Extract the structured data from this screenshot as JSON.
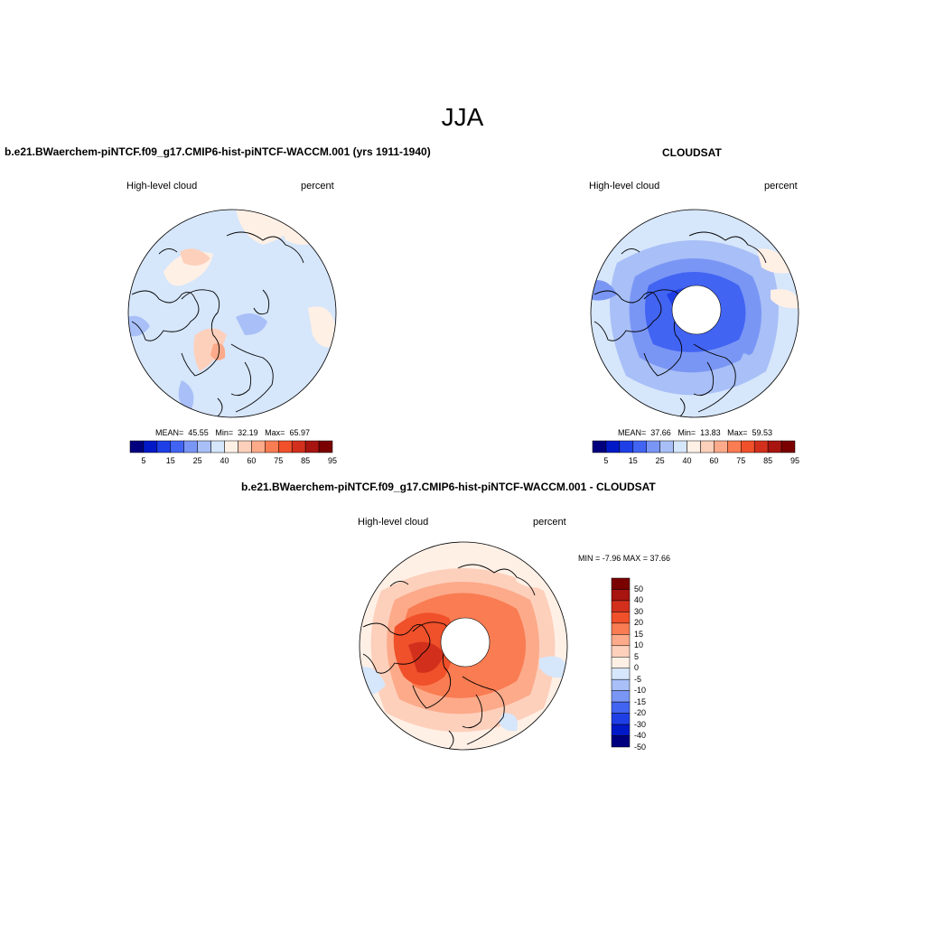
{
  "title": "JJA",
  "panels": {
    "model": {
      "title": "b.e21.BWaerchem-piNTCF.f09_g17.CMIP6-hist-piNTCF-WACCM.001 (yrs 1911-1940)",
      "left_label": "High-level cloud",
      "right_label": "percent",
      "stats": {
        "mean_label": "MEAN=",
        "mean": "45.55",
        "min_label": "Min=",
        "min": "32.19",
        "max_label": "Max=",
        "max": "65.97"
      }
    },
    "obs": {
      "title": "CLOUDSAT",
      "left_label": "High-level cloud",
      "right_label": "percent",
      "stats": {
        "mean_label": "MEAN=",
        "mean": "37.66",
        "min_label": "Min=",
        "min": "13.83",
        "max_label": "Max=",
        "max": "59.53"
      }
    },
    "diff": {
      "title": "b.e21.BWaerchem-piNTCF.f09_g17.CMIP6-hist-piNTCF-WACCM.001 - CLOUDSAT",
      "left_label": "High-level cloud",
      "right_label": "percent",
      "minmax_text": "MIN =  -7.96 MAX =  37.66"
    }
  },
  "colorbar_abs": {
    "colors": [
      "#00007f",
      "#0019c8",
      "#1f3fe6",
      "#4264f2",
      "#7a96f5",
      "#a8bff7",
      "#d6e6fb",
      "#fff0e6",
      "#fdd0bc",
      "#fcaa8a",
      "#f97c52",
      "#f0502a",
      "#d2301c",
      "#a81410",
      "#7a0000"
    ],
    "ticks": [
      "5",
      "15",
      "25",
      "40",
      "60",
      "75",
      "85",
      "95"
    ]
  },
  "colorbar_diff": {
    "colors": [
      "#7a0000",
      "#a81410",
      "#d2301c",
      "#f0502a",
      "#f97c52",
      "#fcaa8a",
      "#fdd0bc",
      "#fff0e6",
      "#d6e6fb",
      "#a8bff7",
      "#7a96f5",
      "#4264f2",
      "#1f3fe6",
      "#0019c8",
      "#00007f"
    ],
    "ticks": [
      "50",
      "40",
      "30",
      "20",
      "15",
      "10",
      "5",
      "0",
      "-5",
      "-10",
      "-15",
      "-20",
      "-30",
      "-40",
      "-50"
    ]
  }
}
